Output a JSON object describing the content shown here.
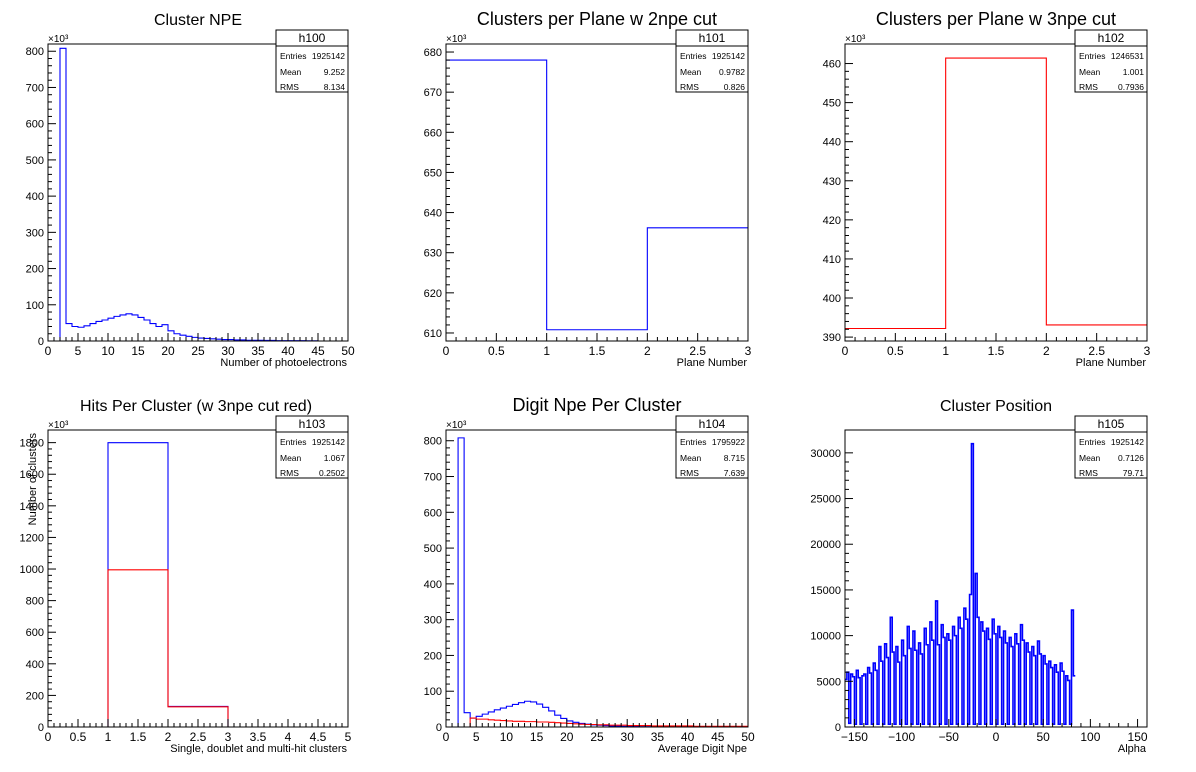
{
  "charts": [
    {
      "id": "h100",
      "title": "Cluster NPE",
      "xlabel": "Number of photoelectrons",
      "ylabel": "",
      "exponent": "×10³",
      "stats": {
        "name": "h100",
        "entries": "1925142",
        "mean": "9.252",
        "rms": "8.134"
      }
    },
    {
      "id": "h101",
      "title": "Clusters per Plane w 2npe cut",
      "xlabel": "Plane Number",
      "ylabel": "",
      "exponent": "×10³",
      "stats": {
        "name": "h101",
        "entries": "1925142",
        "mean": "0.9782",
        "rms": "0.826"
      }
    },
    {
      "id": "h102",
      "title": "Clusters per Plane w 3npe cut",
      "xlabel": "Plane Number",
      "ylabel": "",
      "exponent": "×10³",
      "stats": {
        "name": "h102",
        "entries": "1246531",
        "mean": "1.001",
        "rms": "0.7936"
      }
    },
    {
      "id": "h103",
      "title": "Hits Per Cluster (w 3npe cut red)",
      "xlabel": "Single, doublet and multi-hit clusters",
      "ylabel": "Number of clusters",
      "exponent": "×10³",
      "stats": {
        "name": "h103",
        "entries": "1925142",
        "mean": "1.067",
        "rms": "0.2502"
      }
    },
    {
      "id": "h104",
      "title": "Digit Npe Per Cluster",
      "xlabel": "Average Digit Npe",
      "ylabel": "",
      "exponent": "×10³",
      "stats": {
        "name": "h104",
        "entries": "1795922",
        "mean": "8.715",
        "rms": "7.639"
      }
    },
    {
      "id": "h105",
      "title": "Cluster Position",
      "xlabel": "Alpha",
      "ylabel": "",
      "exponent": "",
      "stats": {
        "name": "h105",
        "entries": "1925142",
        "mean": "0.7126",
        "rms": "79.71"
      }
    }
  ],
  "stat_labels": {
    "entries": "Entries",
    "mean": "Mean",
    "rms": "RMS"
  },
  "chart_data": [
    {
      "type": "histogram",
      "title": "Cluster NPE",
      "xlabel": "Number of photoelectrons",
      "xlim": [
        0,
        50
      ],
      "ylim": [
        0,
        820
      ],
      "xticks": [
        "0",
        "5",
        "10",
        "15",
        "20",
        "25",
        "30",
        "35",
        "40",
        "45",
        "50"
      ],
      "yticks": [
        "0",
        "100",
        "200",
        "300",
        "400",
        "500",
        "600",
        "700",
        "800"
      ],
      "y_unit_exponent": "10^3",
      "bin_edges": [
        0,
        1,
        2,
        3,
        4,
        5,
        6,
        7,
        8,
        9,
        10,
        11,
        12,
        13,
        14,
        15,
        16,
        17,
        18,
        19,
        20,
        21,
        22,
        23,
        24,
        25,
        26,
        27,
        28,
        29,
        30,
        31,
        32,
        33,
        34,
        35,
        36,
        37,
        38,
        39,
        40,
        41,
        42,
        43,
        44,
        45,
        46,
        47,
        48,
        49,
        50
      ],
      "series": [
        {
          "color": "#0000ff",
          "values": [
            0,
            0,
            808,
            48,
            40,
            38,
            42,
            48,
            54,
            58,
            63,
            68,
            72,
            75,
            72,
            65,
            58,
            48,
            40,
            45,
            28,
            20,
            16,
            13,
            10,
            8,
            7,
            6,
            5,
            4,
            4,
            3,
            3,
            2,
            2,
            2,
            1.5,
            1.5,
            1,
            1,
            1,
            1,
            1,
            0.5,
            0.5,
            0,
            0,
            0,
            0,
            0
          ]
        }
      ]
    },
    {
      "type": "histogram",
      "title": "Clusters per Plane w 2npe cut",
      "xlabel": "Plane Number",
      "xlim": [
        0,
        3
      ],
      "ylim": [
        608,
        682
      ],
      "xticks": [
        "0",
        "0.5",
        "1",
        "1.5",
        "2",
        "2.5",
        "3"
      ],
      "yticks": [
        "610",
        "620",
        "630",
        "640",
        "650",
        "660",
        "670",
        "680"
      ],
      "y_unit_exponent": "10^3",
      "bin_edges": [
        0,
        1,
        2,
        3
      ],
      "series": [
        {
          "color": "#0000ff",
          "values": [
            678,
            610.8,
            636.2
          ]
        }
      ]
    },
    {
      "type": "histogram",
      "title": "Clusters per Plane w 3npe cut",
      "xlabel": "Plane Number",
      "xlim": [
        0,
        3
      ],
      "ylim": [
        389,
        465
      ],
      "xticks": [
        "0",
        "0.5",
        "1",
        "1.5",
        "2",
        "2.5",
        "3"
      ],
      "yticks": [
        "390",
        "400",
        "410",
        "420",
        "430",
        "440",
        "450",
        "460"
      ],
      "y_unit_exponent": "10^3",
      "bin_edges": [
        0,
        1,
        2,
        3
      ],
      "series": [
        {
          "color": "#ff0000",
          "values": [
            392.2,
            461.4,
            393.1
          ]
        }
      ]
    },
    {
      "type": "histogram",
      "title": "Hits Per Cluster (w 3npe cut red)",
      "xlabel": "Single, doublet and multi-hit clusters",
      "ylabel": "Number of clusters",
      "xlim": [
        0,
        5
      ],
      "ylim": [
        0,
        1880
      ],
      "xticks": [
        "0",
        "0.5",
        "1",
        "1.5",
        "2",
        "2.5",
        "3",
        "3.5",
        "4",
        "4.5",
        "5"
      ],
      "yticks": [
        "0",
        "200",
        "400",
        "600",
        "800",
        "1000",
        "1200",
        "1400",
        "1600",
        "1800"
      ],
      "y_unit_exponent": "10^3",
      "bin_edges": [
        0,
        1,
        2,
        3,
        4,
        5
      ],
      "series": [
        {
          "color": "#0000ff",
          "values": [
            0,
            1800,
            130,
            0,
            0
          ]
        },
        {
          "color": "#ff0000",
          "values": [
            0,
            995,
            128,
            0,
            0
          ]
        }
      ]
    },
    {
      "type": "histogram",
      "title": "Digit Npe Per Cluster",
      "xlabel": "Average Digit Npe",
      "xlim": [
        0,
        50
      ],
      "ylim": [
        0,
        830
      ],
      "xticks": [
        "0",
        "5",
        "10",
        "15",
        "20",
        "25",
        "30",
        "35",
        "40",
        "45",
        "50"
      ],
      "yticks": [
        "0",
        "100",
        "200",
        "300",
        "400",
        "500",
        "600",
        "700",
        "800"
      ],
      "y_unit_exponent": "10^3",
      "bin_edges": [
        0,
        1,
        2,
        3,
        4,
        5,
        6,
        7,
        8,
        9,
        10,
        11,
        12,
        13,
        14,
        15,
        16,
        17,
        18,
        19,
        20,
        21,
        22,
        23,
        24,
        25,
        26,
        27,
        28,
        29,
        30,
        31,
        32,
        33,
        34,
        35,
        36,
        37,
        38,
        39,
        40,
        41,
        42,
        43,
        44,
        45,
        46,
        47,
        48,
        49,
        50
      ],
      "series": [
        {
          "color": "#0000ff",
          "values": [
            0,
            0,
            808,
            40,
            25,
            30,
            36,
            42,
            48,
            53,
            58,
            63,
            68,
            72,
            70,
            64,
            55,
            45,
            33,
            24,
            17,
            13,
            10,
            8,
            6,
            5,
            4,
            3,
            3,
            2,
            2,
            2,
            1,
            1,
            1,
            1,
            1,
            0.5,
            0.5,
            0.5,
            0.5,
            0,
            0,
            0,
            0,
            0,
            0,
            0,
            0,
            0
          ]
        },
        {
          "color": "#ff0000",
          "values": [
            0,
            0,
            0,
            0,
            25,
            22,
            22,
            20,
            19,
            18,
            17,
            16,
            16,
            15,
            15,
            14,
            14,
            13,
            12,
            11,
            10,
            9,
            8,
            7,
            7,
            6,
            6,
            5,
            5,
            5,
            4,
            4,
            4,
            4,
            3,
            3,
            3,
            3,
            3,
            3,
            3,
            2,
            2,
            2,
            2,
            2,
            2,
            2,
            2,
            2
          ]
        }
      ]
    },
    {
      "type": "histogram",
      "title": "Cluster Position",
      "xlabel": "Alpha",
      "xlim": [
        -160,
        160
      ],
      "ylim": [
        0,
        32500
      ],
      "xticks": [
        "-150",
        "-100",
        "-50",
        "0",
        "50",
        "100",
        "150"
      ],
      "yticks": [
        "0",
        "5000",
        "10000",
        "15000",
        "20000",
        "25000",
        "30000"
      ],
      "bin_edges": [
        -160,
        -158,
        -156,
        -154,
        -152,
        -150,
        -148,
        -146,
        -144,
        -142,
        -140,
        -138,
        -136,
        -134,
        -132,
        -130,
        -128,
        -126,
        -124,
        -122,
        -120,
        -118,
        -116,
        -114,
        -112,
        -110,
        -108,
        -106,
        -104,
        -102,
        -100,
        -98,
        -96,
        -94,
        -92,
        -90,
        -88,
        -86,
        -84,
        -82,
        -80,
        -78,
        -76,
        -74,
        -72,
        -70,
        -68,
        -66,
        -64,
        -62,
        -60,
        -58,
        -56,
        -54,
        -52,
        -50,
        -48,
        -46,
        -44,
        -42,
        -40,
        -38,
        -36,
        -34,
        -32,
        -30,
        -28,
        -26,
        -24,
        -22,
        -20,
        -18,
        -16,
        -14,
        -12,
        -10,
        -8,
        -6,
        -4,
        -2,
        0,
        2,
        4,
        6,
        8,
        10,
        12,
        14,
        16,
        18,
        20,
        22,
        24,
        26,
        28,
        30,
        32,
        34,
        36,
        38,
        40,
        42,
        44,
        46,
        48,
        50,
        52,
        54,
        56,
        58,
        60,
        62,
        64,
        66,
        68,
        70,
        72,
        74,
        76,
        78,
        80,
        82,
        84,
        86,
        88,
        90,
        92,
        94,
        96,
        98,
        100,
        102,
        104,
        106,
        108,
        110,
        112,
        114,
        116,
        118,
        120,
        122,
        124,
        126,
        128,
        130,
        132,
        134,
        136,
        138,
        140,
        142,
        144,
        146,
        148,
        150,
        152,
        154,
        156,
        158,
        160
      ],
      "series": [
        {
          "color": "#0000ff",
          "values": [
            5200,
            6000,
            400,
            5800,
            5500,
            300,
            6200,
            5400,
            300,
            5600,
            5800,
            300,
            6500,
            5900,
            300,
            7000,
            6200,
            300,
            8800,
            7200,
            300,
            9100,
            7600,
            300,
            12000,
            8200,
            300,
            8800,
            7100,
            300,
            9500,
            7800,
            300,
            11000,
            8600,
            300,
            10500,
            8400,
            300,
            9200,
            8000,
            300,
            10800,
            9000,
            300,
            11500,
            9500,
            300,
            13800,
            9000,
            300,
            11200,
            9800,
            300,
            10200,
            9500,
            300,
            11000,
            10000,
            300,
            12000,
            10800,
            300,
            13000,
            11800,
            300,
            14500,
            31000,
            300,
            16800,
            12000,
            300,
            11500,
            10500,
            300,
            10800,
            9600,
            300,
            11800,
            10200,
            300,
            11000,
            9800,
            300,
            10500,
            9200,
            300,
            9800,
            8800,
            300,
            10200,
            9100,
            300,
            11200,
            9500,
            300,
            9200,
            8200,
            300,
            8800,
            7800,
            300,
            9400,
            8000,
            300,
            7800,
            6900,
            300,
            7200,
            6500,
            300,
            6800,
            6000,
            300,
            7000,
            6100,
            300,
            5600,
            5100,
            300,
            12800,
            5600
          ]
        }
      ]
    }
  ]
}
